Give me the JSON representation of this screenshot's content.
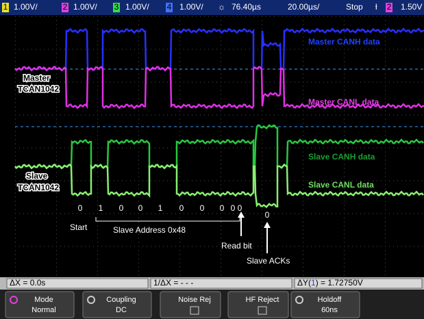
{
  "top_bar": {
    "ch1": "1",
    "ch1_scale": "1.00V/",
    "ch2": "2",
    "ch2_scale": "1.00V/",
    "ch3": "3",
    "ch3_scale": "1.00V/",
    "ch4": "4",
    "ch4_scale": "1.00V/",
    "delay": "76.40µs",
    "timebase": "20.00µs/",
    "run_state": "Stop",
    "trigger_source": "2",
    "trigger_level": "1.50V"
  },
  "labels": {
    "master": "Master",
    "master_part": "TCAN1042",
    "master_canh": "Master CANH data",
    "master_canl": "Master CANL data",
    "slave": "Slave",
    "slave_part": "TCAN1042",
    "slave_canh": "Slave CANH data",
    "slave_canl": "Slave CANL data"
  },
  "bits": [
    "0",
    "1",
    "0",
    "0",
    "1",
    "0",
    "0",
    "0",
    "0",
    "0"
  ],
  "ack_bit": "0",
  "annotations": {
    "start": "Start",
    "address": "Slave Address 0x48",
    "read_bit": "Read bit",
    "slave_acks": "Slave ACKs"
  },
  "measurements": {
    "delta_x": "ΔX = 0.0s",
    "inv_delta_x": "1/ΔX = - - -",
    "delta_y_prefix": "ΔY(",
    "delta_y_channel": "1",
    "delta_y_value": ") = 1.72750V"
  },
  "softkeys": [
    {
      "label": "Mode",
      "value": "Normal"
    },
    {
      "label": "Coupling",
      "value": "DC"
    },
    {
      "label": "Noise Rej"
    },
    {
      "label": "HF Reject"
    },
    {
      "label": "Holdoff",
      "value": "60ns"
    }
  ]
}
